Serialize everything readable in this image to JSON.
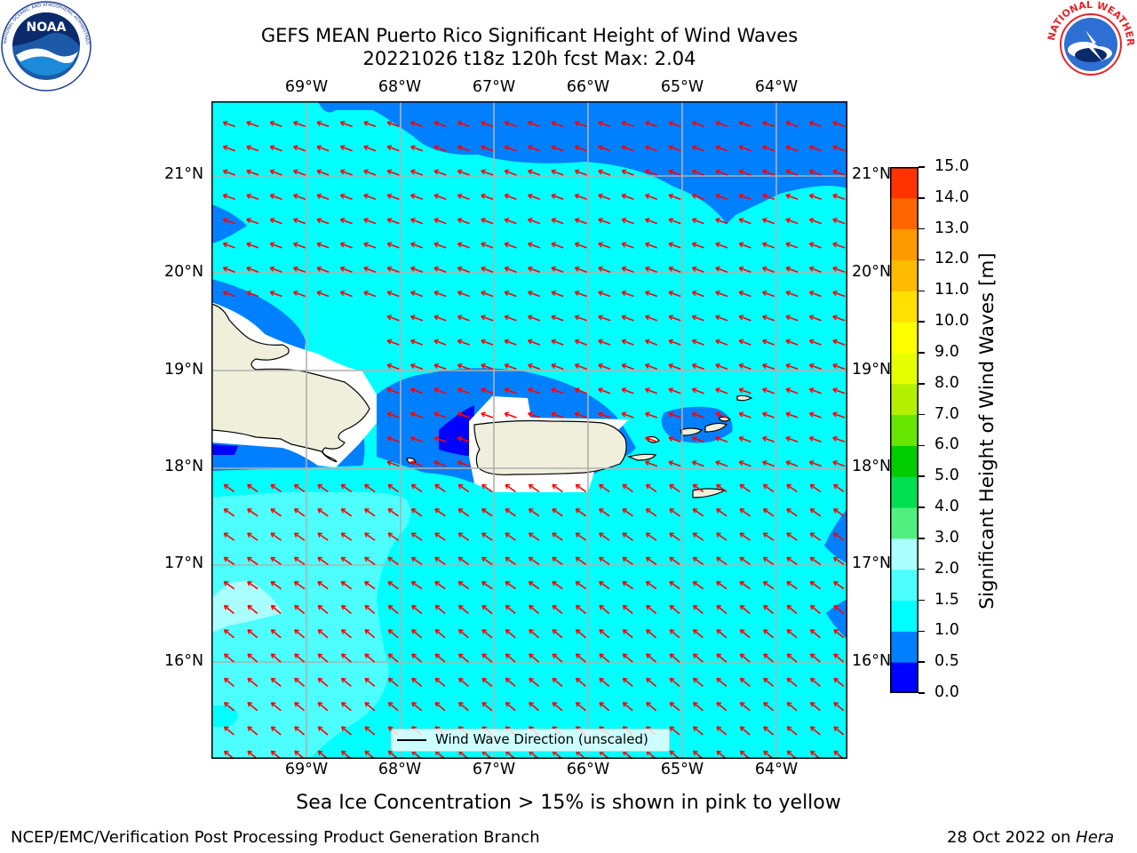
{
  "header": {
    "title_line1": "GEFS MEAN Puerto Rico Significant Height of Wind Waves",
    "title_line2": "20221026 t18z 120h fcst   Max: 2.04"
  },
  "logos": {
    "left": {
      "icon": "noaa-logo",
      "text": "NOAA",
      "ring_text": "NATIONAL OCEANIC AND ATMOSPHERIC ADMINISTRATION · U.S. DEPARTMENT OF COMMERCE"
    },
    "right": {
      "icon": "nws-logo",
      "ring_text": "NATIONAL WEATHER SERVICE"
    }
  },
  "map": {
    "lon_ticks": [
      "69°W",
      "68°W",
      "67°W",
      "66°W",
      "65°W",
      "64°W"
    ],
    "lat_ticks": [
      "21°N",
      "20°N",
      "19°N",
      "18°N",
      "17°N",
      "16°N"
    ],
    "land_color": "#efefdc",
    "arrow_color": "#ff0000",
    "grid_color": "#b0b0b0"
  },
  "legend": {
    "label": "Wind Wave Direction (unscaled)"
  },
  "colorbar": {
    "label": "Significant Height of Wind Waves [m]",
    "ticks": [
      "0.0",
      "0.5",
      "1.0",
      "1.5",
      "2.0",
      "3.0",
      "4.0",
      "5.0",
      "6.0",
      "7.0",
      "8.0",
      "9.0",
      "10.0",
      "11.0",
      "12.0",
      "13.0",
      "14.0",
      "15.0"
    ],
    "colors": [
      "#0000ff",
      "#0080ff",
      "#00ffff",
      "#4dffff",
      "#aaffff",
      "#50f080",
      "#00e050",
      "#00cc00",
      "#66e600",
      "#b3f000",
      "#e6ff00",
      "#ffff00",
      "#ffe000",
      "#ffbb00",
      "#ff9900",
      "#ff6600",
      "#ff3300"
    ]
  },
  "footer": {
    "note": "Sea Ice Concentration > 15% is shown in pink to yellow",
    "left": "NCEP/EMC/Verification Post Processing Product Generation Branch",
    "right_prefix": "28 Oct 2022 on ",
    "right_machine": "Hera"
  }
}
